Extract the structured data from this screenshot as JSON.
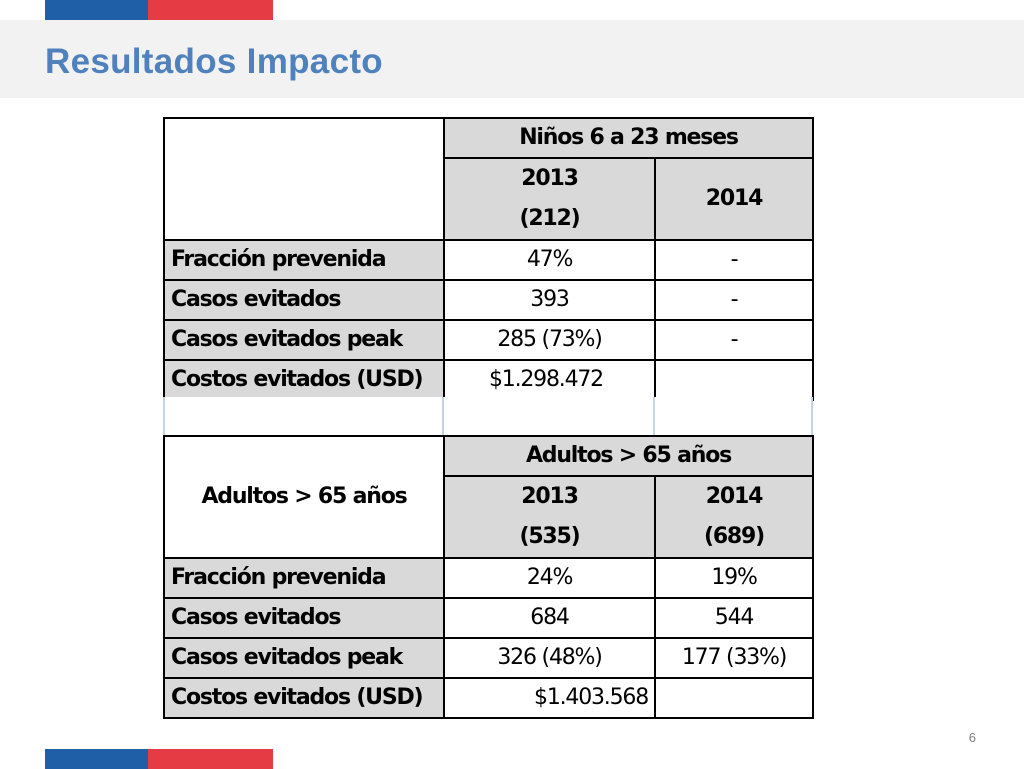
{
  "slide": {
    "title": "Resultados Impacto",
    "page_number": "6",
    "brand_colors": {
      "flag_blue": "#1f5fa8",
      "flag_red": "#e43b44",
      "title": "#4f81bd",
      "header_fill": "#d9d9d9"
    }
  },
  "table1": {
    "group_header": "Niños 6 a 23 meses",
    "col1": {
      "year": "2013",
      "n": "(212)"
    },
    "col2": {
      "year": "2014"
    },
    "rows": [
      {
        "label": "Fracción prevenida",
        "v2013": "47%",
        "v2014": "-"
      },
      {
        "label": "Casos evitados",
        "v2013": "393",
        "v2014": "-"
      },
      {
        "label": "Casos evitados peak",
        "v2013": "285 (73%)",
        "v2014": "-"
      },
      {
        "label": "Costos evitados (USD)",
        "v2013": "$1.298.472",
        "v2014": ""
      }
    ]
  },
  "table2": {
    "corner_label": "Adultos > 65 años",
    "group_header": "Adultos > 65 años",
    "col1": {
      "year": "2013",
      "n": "(535)"
    },
    "col2": {
      "year": "2014",
      "n": "(689)"
    },
    "rows": [
      {
        "label": "Fracción prevenida",
        "v2013": "24%",
        "v2014": "19%"
      },
      {
        "label": "Casos evitados",
        "v2013": "684",
        "v2014": "544"
      },
      {
        "label": "Casos evitados peak",
        "v2013": "326 (48%)",
        "v2014": "177 (33%)"
      },
      {
        "label": "Costos evitados (USD)",
        "v2013": "$1.403.568",
        "v2014": ""
      }
    ]
  }
}
